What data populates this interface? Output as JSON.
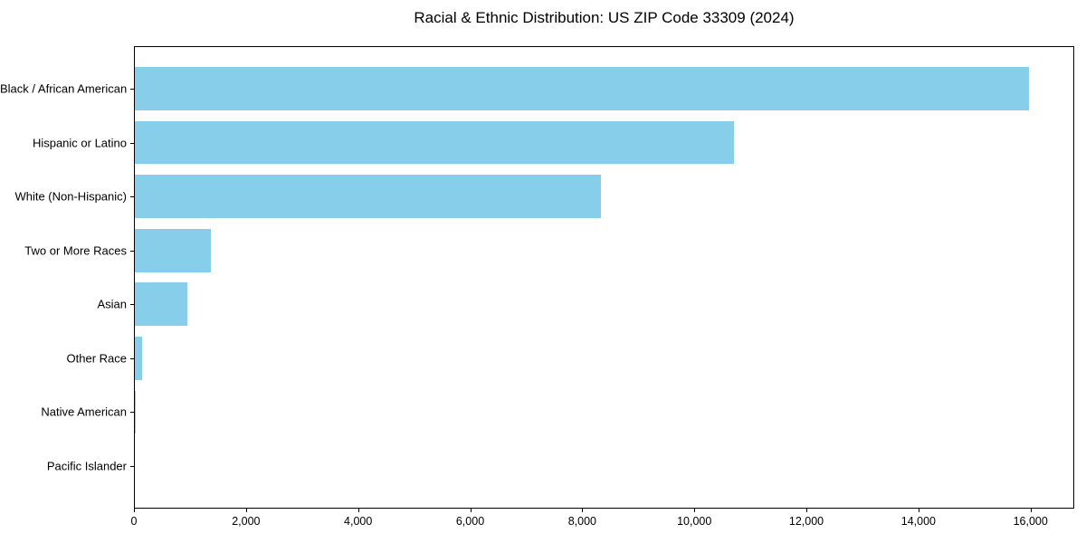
{
  "chart_data": {
    "type": "bar",
    "orientation": "horizontal",
    "title": "Racial & Ethnic Distribution: US ZIP Code 33309 (2024)",
    "categories": [
      "Black / African American",
      "Hispanic or Latino",
      "White (Non-Hispanic)",
      "Two or More Races",
      "Asian",
      "Other Race",
      "Native American",
      "Pacific Islander"
    ],
    "values": [
      15980,
      10710,
      8340,
      1380,
      960,
      150,
      30,
      15
    ],
    "xlabel": "",
    "ylabel": "",
    "xlim": [
      0,
      16780
    ],
    "x_tick_values": [
      0,
      2000,
      4000,
      6000,
      8000,
      10000,
      12000,
      14000,
      16000
    ],
    "x_tick_labels": [
      "0",
      "2,000",
      "4,000",
      "6,000",
      "8,000",
      "10,000",
      "12,000",
      "14,000",
      "16,000"
    ],
    "grid": false,
    "legend": "none",
    "bar_color": "#87CEEB",
    "spine_color": "#000000",
    "text_color": "#000000",
    "background_color": "#FFFFFF"
  }
}
